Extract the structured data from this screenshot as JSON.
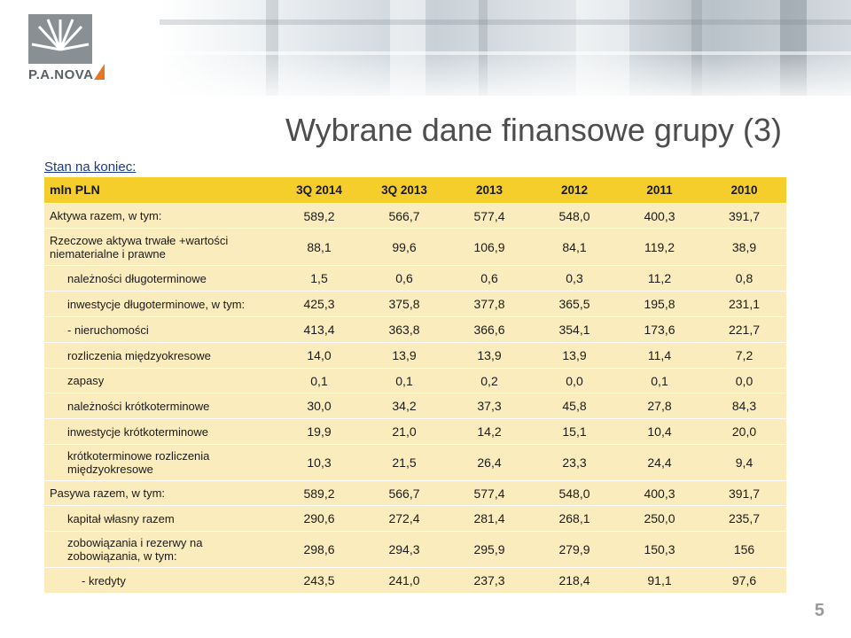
{
  "logo": {
    "text": "P.A.NOVA"
  },
  "title": "Wybrane dane finansowe grupy (3)",
  "subtitle": "Stan na koniec:",
  "table": {
    "header": {
      "label": "mln PLN",
      "cols": [
        "3Q 2014",
        "3Q 2013",
        "2013",
        "2012",
        "2011",
        "2010"
      ]
    },
    "rows": [
      {
        "label": "Aktywa razem, w tym:",
        "values": [
          "589,2",
          "566,7",
          "577,4",
          "548,0",
          "400,3",
          "391,7"
        ]
      },
      {
        "label": "Rzeczowe aktywa trwałe +wartości niematerialne i prawne",
        "values": [
          "88,1",
          "99,6",
          "106,9",
          "84,1",
          "119,2",
          "38,9"
        ]
      },
      {
        "label": "należności długoterminowe",
        "values": [
          "1,5",
          "0,6",
          "0,6",
          "0,3",
          "11,2",
          "0,8"
        ]
      },
      {
        "label": "inwestycje długoterminowe, w tym:",
        "values": [
          "425,3",
          "375,8",
          "377,8",
          "365,5",
          "195,8",
          "231,1"
        ]
      },
      {
        "label": "- nieruchomości",
        "values": [
          "413,4",
          "363,8",
          "366,6",
          "354,1",
          "173,6",
          "221,7"
        ]
      },
      {
        "label": "rozliczenia międzyokresowe",
        "values": [
          "14,0",
          "13,9",
          "13,9",
          "13,9",
          "11,4",
          "7,2"
        ]
      },
      {
        "label": "zapasy",
        "values": [
          "0,1",
          "0,1",
          "0,2",
          "0,0",
          "0,1",
          "0,0"
        ]
      },
      {
        "label": "należności krótkoterminowe",
        "values": [
          "30,0",
          "34,2",
          "37,3",
          "45,8",
          "27,8",
          "84,3"
        ]
      },
      {
        "label": "inwestycje krótkoterminowe",
        "values": [
          "19,9",
          "21,0",
          "14,2",
          "15,1",
          "10,4",
          "20,0"
        ]
      },
      {
        "label": "krótkoterminowe rozliczenia międzyokresowe",
        "values": [
          "10,3",
          "21,5",
          "26,4",
          "23,3",
          "24,4",
          "9,4"
        ]
      },
      {
        "label": "Pasywa razem, w tym:",
        "values": [
          "589,2",
          "566,7",
          "577,4",
          "548,0",
          "400,3",
          "391,7"
        ]
      },
      {
        "label": "kapitał własny razem",
        "values": [
          "290,6",
          "272,4",
          "281,4",
          "268,1",
          "250,0",
          "235,7"
        ]
      },
      {
        "label": "zobowiązania i rezerwy na zobowiązania, w tym:",
        "values": [
          "298,6",
          "294,3",
          "295,9",
          "279,9",
          "150,3",
          "156"
        ]
      },
      {
        "label": "- kredyty",
        "values": [
          "243,5",
          "241,0",
          "237,3",
          "218,4",
          "91,1",
          "97,6"
        ]
      }
    ]
  },
  "page_number": "5",
  "colors": {
    "header_bg": "#f5ce2b",
    "row_bg": "#fbecbd",
    "logo_accent": "#e87722"
  }
}
